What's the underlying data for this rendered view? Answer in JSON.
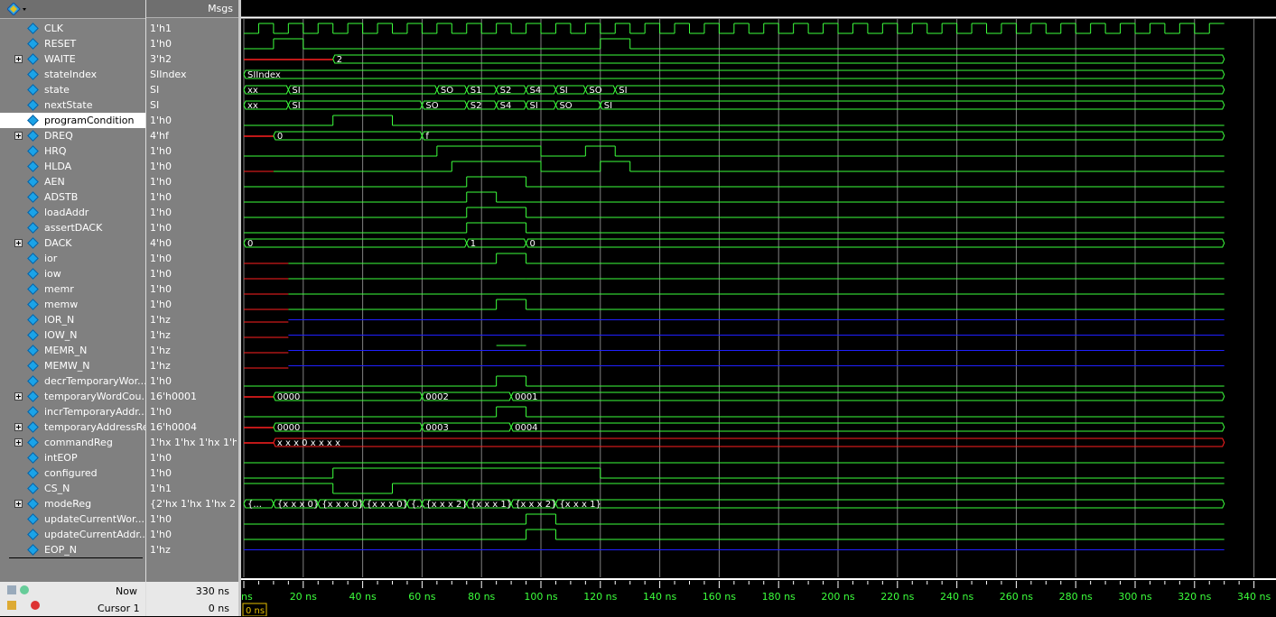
{
  "header": {
    "msgs_label": "Msgs"
  },
  "signals": [
    {
      "name": "CLK",
      "value": "1'h1",
      "expand": false
    },
    {
      "name": "RESET",
      "value": "1'h0",
      "expand": false
    },
    {
      "name": "WAITE",
      "value": "3'h2",
      "expand": true
    },
    {
      "name": "stateIndex",
      "value": "SIIndex",
      "expand": false
    },
    {
      "name": "state",
      "value": "SI",
      "expand": false
    },
    {
      "name": "nextState",
      "value": "SI",
      "expand": false
    },
    {
      "name": "programCondition",
      "value": "1'h0",
      "expand": false,
      "selected": true
    },
    {
      "name": "DREQ",
      "value": "4'hf",
      "expand": true
    },
    {
      "name": "HRQ",
      "value": "1'h0",
      "expand": false
    },
    {
      "name": "HLDA",
      "value": "1'h0",
      "expand": false
    },
    {
      "name": "AEN",
      "value": "1'h0",
      "expand": false
    },
    {
      "name": "ADSTB",
      "value": "1'h0",
      "expand": false
    },
    {
      "name": "loadAddr",
      "value": "1'h0",
      "expand": false
    },
    {
      "name": "assertDACK",
      "value": "1'h0",
      "expand": false
    },
    {
      "name": "DACK",
      "value": "4'h0",
      "expand": true
    },
    {
      "name": "ior",
      "value": "1'h0",
      "expand": false
    },
    {
      "name": "iow",
      "value": "1'h0",
      "expand": false
    },
    {
      "name": "memr",
      "value": "1'h0",
      "expand": false
    },
    {
      "name": "memw",
      "value": "1'h0",
      "expand": false
    },
    {
      "name": "IOR_N",
      "value": "1'hz",
      "expand": false
    },
    {
      "name": "IOW_N",
      "value": "1'hz",
      "expand": false
    },
    {
      "name": "MEMR_N",
      "value": "1'hz",
      "expand": false
    },
    {
      "name": "MEMW_N",
      "value": "1'hz",
      "expand": false
    },
    {
      "name": "decrTemporaryWor...",
      "value": "1'h0",
      "expand": false
    },
    {
      "name": "temporaryWordCou...",
      "value": "16'h0001",
      "expand": true
    },
    {
      "name": "incrTemporaryAddr...",
      "value": "1'h0",
      "expand": false
    },
    {
      "name": "temporaryAddressReg",
      "value": "16'h0004",
      "expand": true
    },
    {
      "name": "commandReg",
      "value": "1'hx 1'hx 1'hx 1'h...",
      "expand": true
    },
    {
      "name": "intEOP",
      "value": "1'h0",
      "expand": false
    },
    {
      "name": "configured",
      "value": "1'h0",
      "expand": false
    },
    {
      "name": "CS_N",
      "value": "1'h1",
      "expand": false
    },
    {
      "name": "modeReg",
      "value": "{2'hx 1'hx 1'hx 2'...",
      "expand": true
    },
    {
      "name": "updateCurrentWor...",
      "value": "1'h0",
      "expand": false
    },
    {
      "name": "updateCurrentAddr...",
      "value": "1'h0",
      "expand": false
    },
    {
      "name": "EOP_N",
      "value": "1'hz",
      "expand": false
    }
  ],
  "footer": {
    "now_label": "Now",
    "now_value": "330 ns",
    "cursor_label": "Cursor 1",
    "cursor_value": "0 ns",
    "cursor_box": "0 ns"
  },
  "timeline": {
    "start_label": "ns",
    "labels": [
      "20 ns",
      "40 ns",
      "60 ns",
      "80 ns",
      "100 ns",
      "120 ns",
      "140 ns",
      "160 ns",
      "180 ns",
      "200 ns",
      "220 ns",
      "240 ns",
      "260 ns",
      "280 ns",
      "300 ns",
      "320 ns",
      "340 ns"
    ]
  },
  "bus_labels": {
    "waite": [
      "2"
    ],
    "stateIndex": [
      "SIIndex"
    ],
    "state": [
      "xx",
      "SI",
      "SO",
      "S1",
      "S2",
      "S4",
      "SI",
      "SO",
      "SI"
    ],
    "nextState": [
      "xx",
      "SI",
      "SO",
      "S2",
      "S4",
      "SI",
      "SO",
      "SI"
    ],
    "dreq": [
      "0",
      "f"
    ],
    "dack": [
      "0",
      "1",
      "0"
    ],
    "twc": [
      "0000",
      "0002",
      "0001"
    ],
    "tar": [
      "0000",
      "0003",
      "0004"
    ],
    "cmd": [
      "x x x 0 x x x x"
    ],
    "mode": [
      "{...",
      "{x x x 0}",
      "{x x x 0}",
      "{x x x 0}",
      "{...",
      "{x x x 2}",
      "{x x x 1}",
      "{x x x 2}",
      "{x x x 1}"
    ]
  },
  "colors": {
    "wave": "#3cff3c",
    "x_wave": "#ff2020",
    "z_wave": "#2020ff",
    "grid": "#808080"
  }
}
